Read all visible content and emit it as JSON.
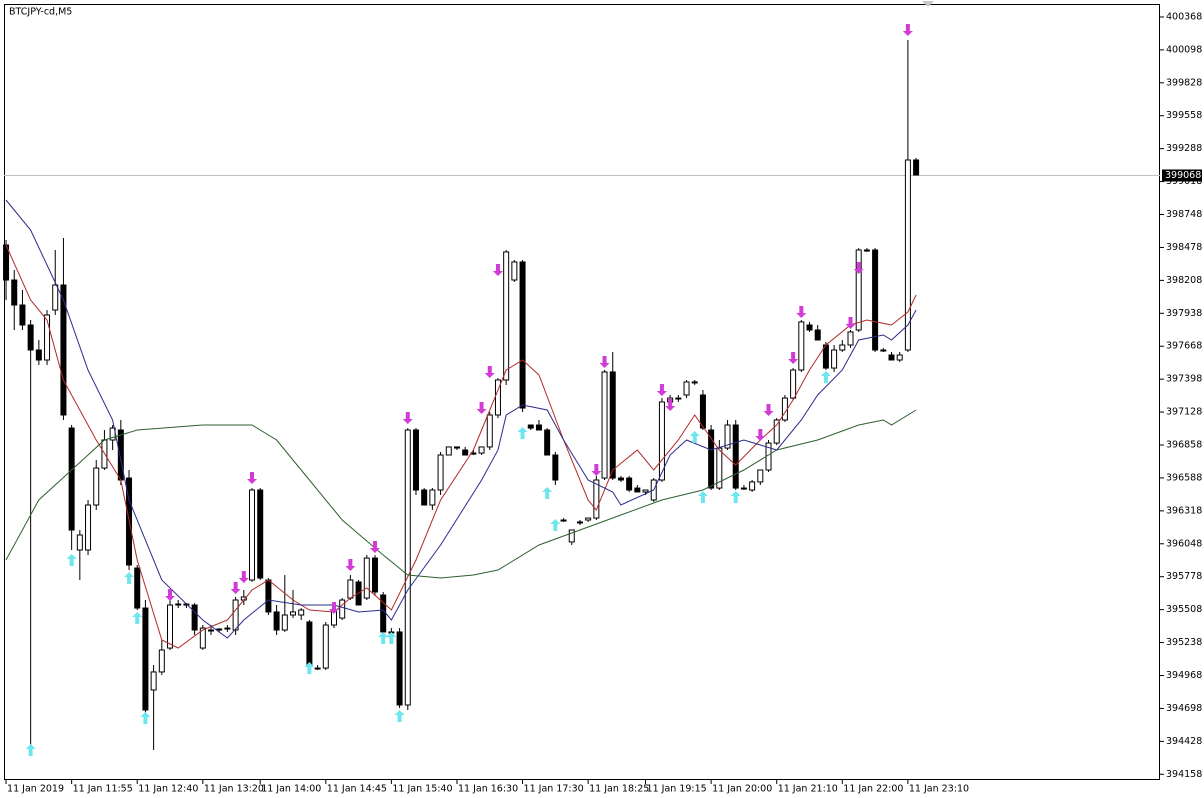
{
  "chart_data": {
    "type": "candlestick",
    "title": "BTCJPY-cd,M5",
    "up_color": "#ffffff",
    "down_color": "#000000",
    "open": [
      398498,
      398211,
      398006,
      397842,
      397637,
      397555,
      397965,
      398170,
      396997,
      395997,
      395997,
      396366,
      396669,
      396899,
      396981,
      396587,
      395849,
      395521,
      394849,
      394997,
      395193,
      395554,
      395546,
      395546,
      395193,
      395341,
      395341,
      395349,
      395341,
      395587,
      395751,
      396489,
      395751,
      395489,
      395341,
      395464,
      395464,
      395407,
      395029,
      395029,
      395382,
      395439,
      395603,
      395735,
      395603,
      395931,
      395628,
      395325,
      395325,
      394726,
      396981,
      396489,
      396366,
      396489,
      396776,
      396842,
      396817,
      396792,
      396792,
      396842,
      397104,
      397391,
      398211,
      398359,
      397022,
      397022,
      396981,
      396776,
      396243,
      396063,
      396227,
      396243,
      396259,
      396587,
      397457,
      396587,
      396587,
      396505,
      396473,
      396407,
      396571,
      397211,
      397243,
      397268,
      397375,
      397268,
      396981,
      396505,
      396833,
      397022,
      396505,
      396489,
      396555,
      396653,
      396874,
      397063,
      397243,
      397473,
      397842,
      397801,
      397678,
      397489,
      397637,
      397678,
      397801,
      398457,
      398457,
      397637,
      397596,
      397555,
      397637,
      399195
    ],
    "high": [
      398539,
      398293,
      398129,
      397883,
      397719,
      397965,
      398457,
      398555,
      397022,
      396161,
      396407,
      396735,
      396981,
      397022,
      397063,
      396653,
      395874,
      395587,
      395054,
      395259,
      395587,
      395587,
      395562,
      395562,
      395382,
      395382,
      395357,
      395382,
      395612,
      395669,
      396505,
      396505,
      395767,
      395546,
      395792,
      395669,
      395521,
      395423,
      395054,
      395407,
      395521,
      395603,
      395792,
      395751,
      395956,
      395956,
      395653,
      395357,
      395357,
      396997,
      396997,
      396505,
      396505,
      396801,
      396842,
      396842,
      396842,
      396817,
      396842,
      397129,
      397407,
      398457,
      398375,
      398375,
      397022,
      397063,
      396997,
      396801,
      396259,
      396161,
      396243,
      396259,
      396604,
      397473,
      397621,
      396604,
      396604,
      396530,
      396489,
      396587,
      397243,
      397268,
      397268,
      397391,
      397391,
      397309,
      397022,
      396899,
      397063,
      397063,
      396530,
      396571,
      396653,
      396899,
      397079,
      397268,
      397489,
      397883,
      397867,
      397842,
      397703,
      397678,
      397719,
      397801,
      398473,
      398473,
      398473,
      397654,
      397621,
      397621,
      400179,
      399211
    ],
    "low": [
      398047,
      397801,
      397801,
      394357,
      397514,
      397514,
      397924,
      397063,
      395997,
      395751,
      395956,
      396325,
      396653,
      396817,
      396530,
      395833,
      395505,
      394644,
      394357,
      394972,
      395177,
      395521,
      395521,
      395300,
      395177,
      395300,
      395325,
      395325,
      395300,
      395546,
      395735,
      395751,
      395464,
      395300,
      395325,
      395439,
      395423,
      395013,
      395013,
      395013,
      395357,
      395423,
      395587,
      395546,
      395587,
      395628,
      395259,
      395300,
      394701,
      394685,
      396448,
      396366,
      396325,
      396448,
      396776,
      396817,
      396776,
      396776,
      396776,
      396817,
      397079,
      397350,
      398195,
      397129,
      396981,
      396981,
      396776,
      396530,
      396227,
      396038,
      396202,
      396227,
      396243,
      396571,
      396571,
      396555,
      396473,
      396473,
      396448,
      396391,
      396555,
      397186,
      397211,
      397243,
      397350,
      396981,
      396489,
      396489,
      396817,
      396489,
      396489,
      396473,
      396530,
      396637,
      396858,
      397047,
      397227,
      397457,
      397785,
      397719,
      397473,
      397457,
      397621,
      397654,
      397785,
      398441,
      397621,
      397621,
      397555,
      397539,
      397621,
      399072
    ],
    "close": [
      398211,
      398006,
      397842,
      397637,
      397555,
      397924,
      398170,
      397104,
      396161,
      396120,
      396366,
      396669,
      396899,
      396997,
      396571,
      395874,
      395521,
      394685,
      394997,
      395177,
      395546,
      395546,
      395554,
      395341,
      395357,
      395341,
      395349,
      395357,
      395587,
      395612,
      396489,
      395767,
      395489,
      395341,
      395464,
      395489,
      395505,
      395054,
      395029,
      395382,
      395505,
      395587,
      395751,
      395546,
      395931,
      395653,
      395325,
      395325,
      394726,
      396981,
      396489,
      396366,
      396489,
      396776,
      396842,
      396833,
      396776,
      396792,
      396842,
      397104,
      397391,
      398441,
      398359,
      397161,
      396997,
      396981,
      396776,
      396571,
      396243,
      396161,
      396227,
      396259,
      396571,
      397457,
      396587,
      396571,
      396489,
      396473,
      396489,
      396571,
      397211,
      397243,
      397243,
      397375,
      397375,
      396997,
      396505,
      396833,
      397022,
      396505,
      396505,
      396555,
      396653,
      396874,
      397063,
      397243,
      397473,
      397867,
      397801,
      397719,
      397489,
      397637,
      397678,
      397785,
      398457,
      398457,
      397637,
      397637,
      397555,
      397596,
      399195,
      399072
    ],
    "lines": [
      {
        "color": "#b22a2a",
        "x": [
          0,
          3,
          5,
          7,
          11,
          14,
          16,
          19,
          21,
          24,
          27,
          30,
          32,
          35,
          37,
          40,
          42,
          44,
          47,
          50,
          53,
          57,
          58,
          61,
          63,
          65,
          68,
          71,
          72,
          74,
          77,
          79,
          82,
          84,
          87,
          89,
          92,
          94,
          96,
          98,
          100,
          103,
          105,
          108,
          110,
          111
        ],
        "values": [
          398498,
          398047,
          397883,
          397391,
          396899,
          396571,
          395915,
          395259,
          395193,
          395341,
          395423,
          395669,
          395751,
          395587,
          395505,
          395489,
          395603,
          395685,
          395505,
          395915,
          396407,
          396817,
          396981,
          397473,
          397555,
          397432,
          396899,
          396407,
          396325,
          396653,
          396817,
          396653,
          396899,
          397104,
          396817,
          396694,
          396899,
          397022,
          397227,
          397473,
          397678,
          397842,
          397883,
          397842,
          397949,
          398088
        ]
      },
      {
        "color": "#2b2b8c",
        "x": [
          0,
          3,
          7,
          10,
          13,
          15,
          19,
          24,
          27,
          29,
          32,
          36,
          40,
          43,
          46,
          47,
          49,
          53,
          58,
          60,
          61,
          63,
          66,
          68,
          71,
          74,
          75,
          79,
          81,
          83,
          86,
          90,
          94,
          97,
          99,
          102,
          104,
          107,
          108,
          110,
          111
        ],
        "values": [
          398867,
          398621,
          398047,
          397473,
          397063,
          396407,
          395751,
          395423,
          395275,
          395423,
          395587,
          395546,
          395546,
          395489,
          395505,
          395423,
          395669,
          396038,
          396571,
          396817,
          397104,
          397186,
          397145,
          396899,
          396571,
          396473,
          396366,
          396489,
          396776,
          396899,
          396817,
          396899,
          396817,
          397063,
          397268,
          397473,
          397719,
          397760,
          397719,
          397842,
          397965
        ]
      },
      {
        "color": "#2f5f2f",
        "x": [
          0,
          4,
          8,
          12,
          16,
          24,
          30,
          33,
          37,
          41,
          46,
          49,
          53,
          57,
          60,
          65,
          70,
          75,
          80,
          85,
          90,
          94,
          99,
          104,
          107,
          108,
          111
        ],
        "values": [
          395915,
          396407,
          396653,
          396899,
          396981,
          397022,
          397022,
          396899,
          396571,
          396243,
          395956,
          395792,
          395767,
          395792,
          395833,
          396038,
          396161,
          396284,
          396407,
          396489,
          396653,
          396817,
          396899,
          397022,
          397063,
          397022,
          397145
        ]
      }
    ],
    "up_arrows": {
      "color": "#6ee6ef",
      "x": [
        3,
        8,
        15,
        16,
        17,
        37,
        46,
        47,
        48,
        63,
        66,
        67,
        84,
        85,
        89,
        100
      ],
      "values": [
        394357,
        395915,
        395767,
        395439,
        394619,
        395029,
        395275,
        395275,
        394636,
        396956,
        396464,
        396202,
        396924,
        396432,
        396432,
        397416
      ]
    },
    "down_arrows": {
      "color": "#d23cd6",
      "x": [
        20,
        28,
        29,
        30,
        40,
        42,
        45,
        49,
        58,
        59,
        60,
        72,
        73,
        80,
        81,
        92,
        93,
        96,
        97,
        103,
        104,
        110
      ],
      "values": [
        395628,
        395685,
        395776,
        396587,
        395521,
        395874,
        396022,
        397079,
        397161,
        397457,
        398293,
        396653,
        397539,
        397309,
        397186,
        396940,
        397145,
        397571,
        397949,
        397858,
        398309,
        400261
      ]
    },
    "current_price": 399068,
    "ylim": [
      394111,
      400466
    ],
    "yticks": [
      400368,
      400098,
      399828,
      399558,
      399288,
      399018,
      398748,
      398478,
      398208,
      397938,
      397668,
      397398,
      397128,
      396858,
      396588,
      396318,
      396048,
      395778,
      395508,
      395238,
      394968,
      394698,
      394428,
      394158
    ],
    "xlim": [
      -0.25,
      140.75
    ],
    "xticks": [
      {
        "value": 0,
        "label": "11 Jan 2019"
      },
      {
        "value": 8,
        "label": "11 Jan 11:55"
      },
      {
        "value": 16,
        "label": "11 Jan 12:40"
      },
      {
        "value": 24,
        "label": "11 Jan 13:20"
      },
      {
        "value": 31,
        "label": "11 Jan 14:00"
      },
      {
        "value": 39,
        "label": "11 Jan 14:45"
      },
      {
        "value": 47,
        "label": "11 Jan 15:40"
      },
      {
        "value": 55,
        "label": "11 Jan 16:30"
      },
      {
        "value": 63,
        "label": "11 Jan 17:30"
      },
      {
        "value": 71,
        "label": "11 Jan 18:25"
      },
      {
        "value": 78,
        "label": "11 Jan 19:15"
      },
      {
        "value": 86,
        "label": "11 Jan 20:00"
      },
      {
        "value": 94,
        "label": "11 Jan 21:10"
      },
      {
        "value": 102,
        "label": "11 Jan 22:00"
      },
      {
        "value": 110,
        "label": "11 Jan 23:10"
      }
    ]
  }
}
